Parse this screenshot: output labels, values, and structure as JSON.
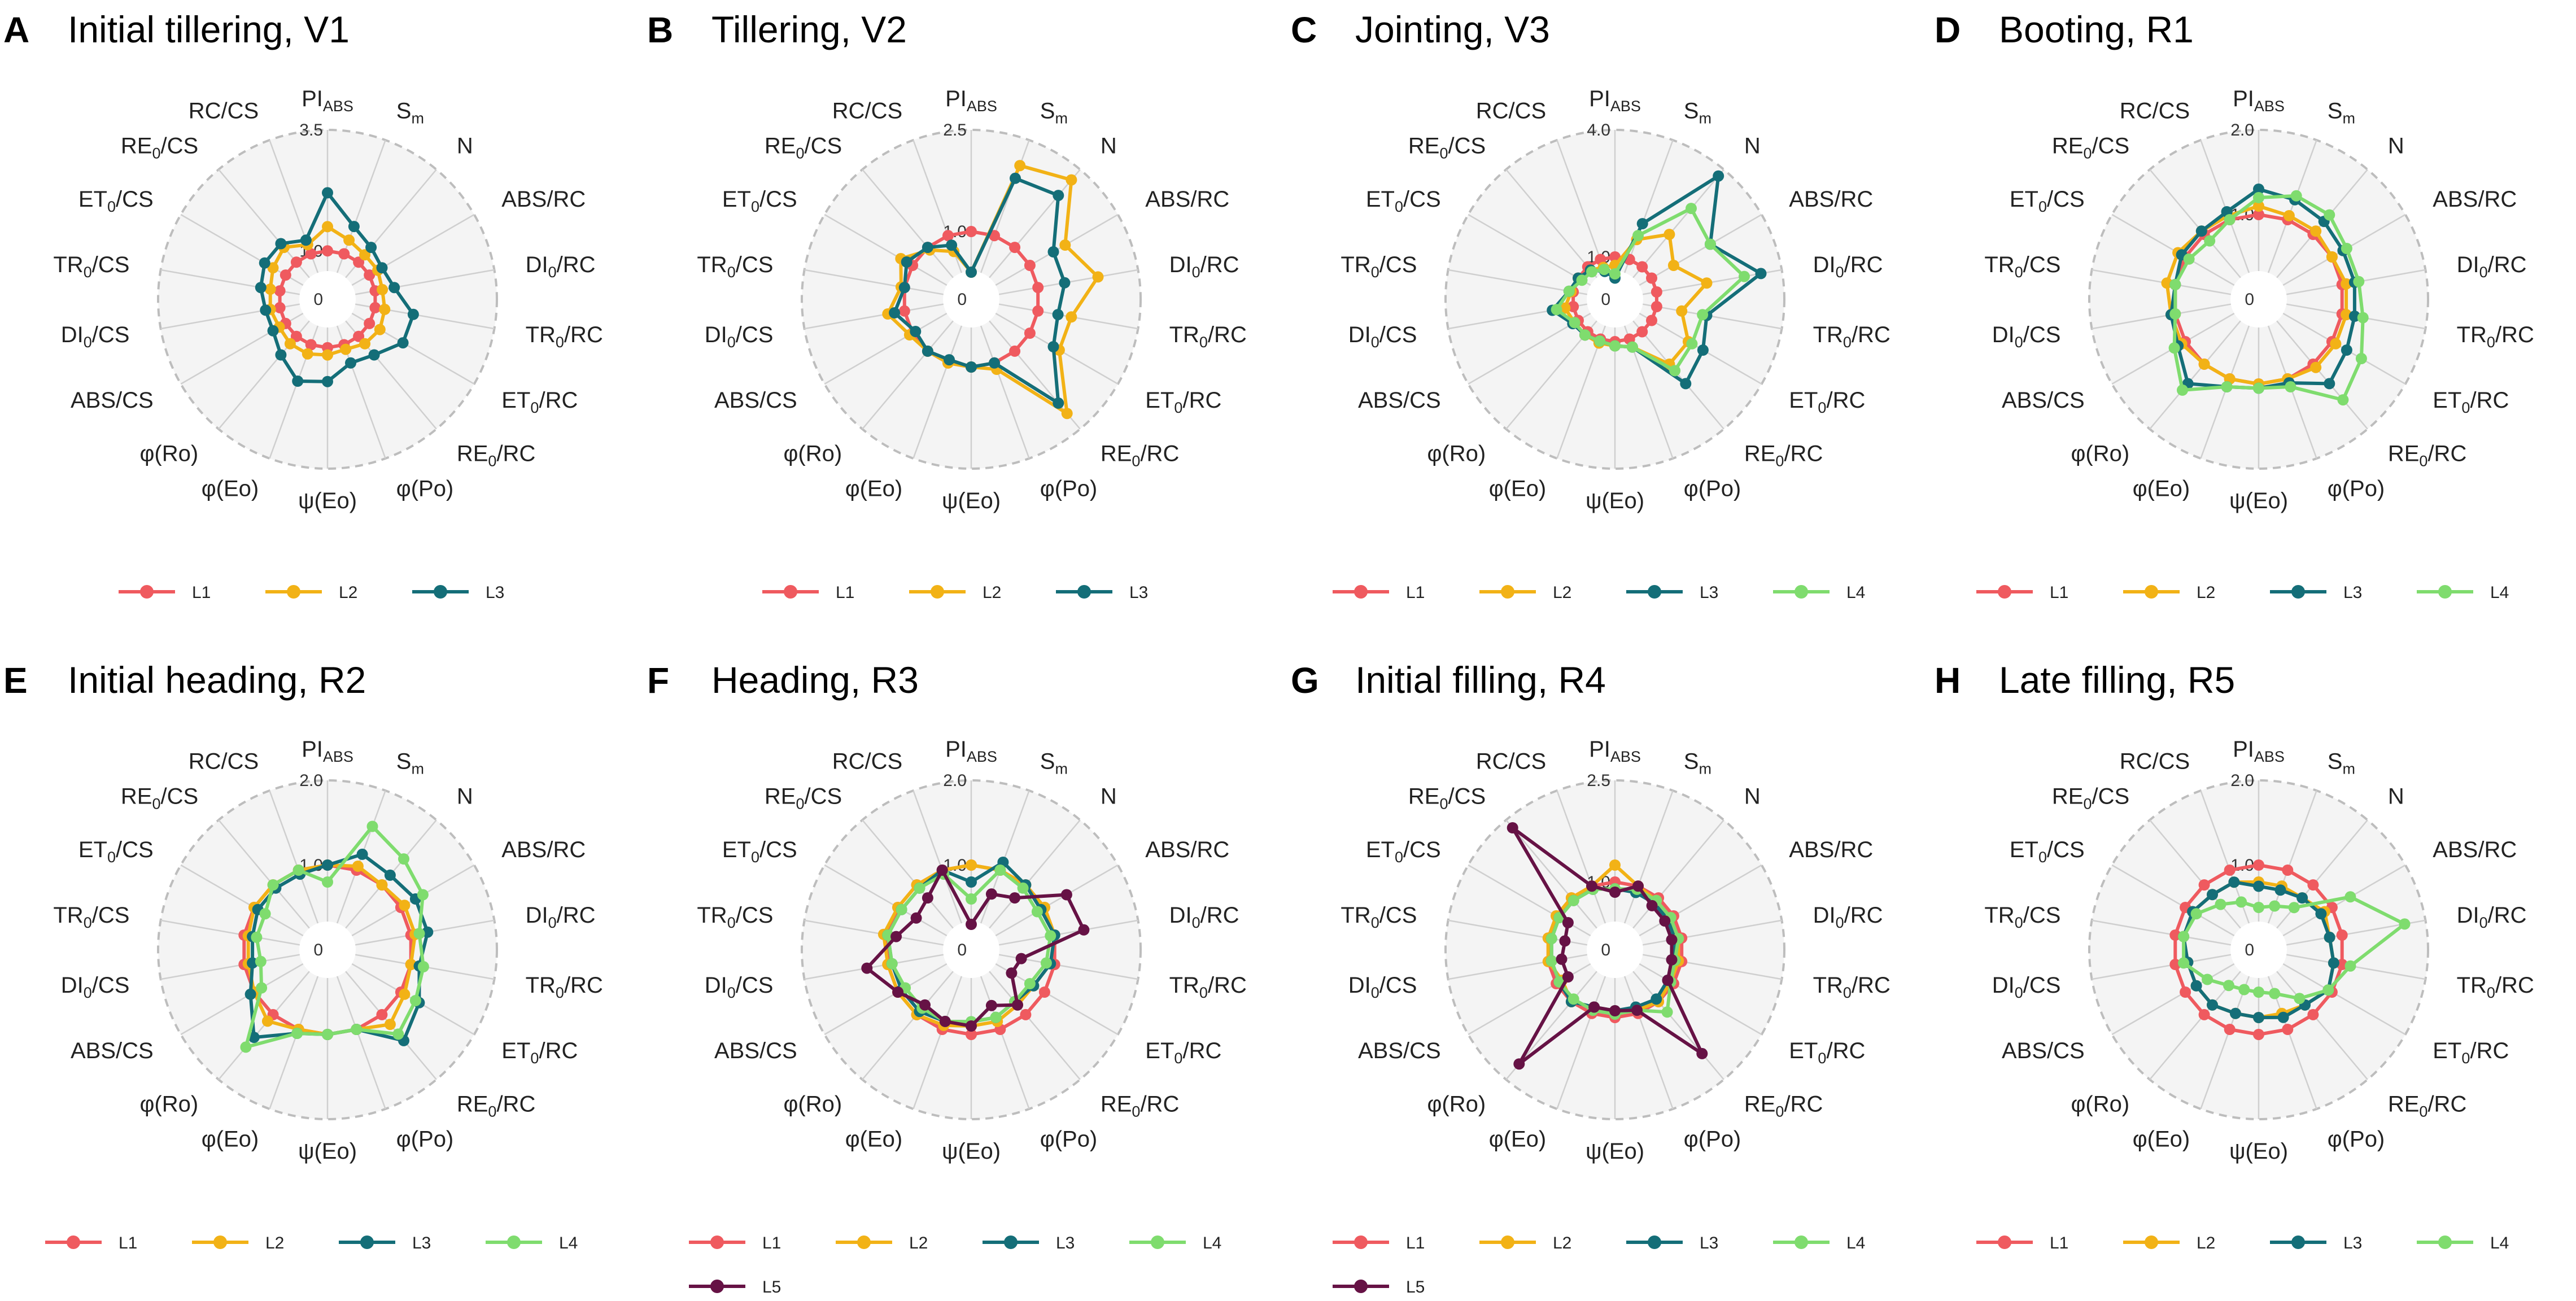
{
  "colors": {
    "L1": "#ef5a5f",
    "L2": "#f2b216",
    "L3": "#146e78",
    "L4": "#7fdc6e",
    "L5": "#661245"
  },
  "chart_data": [
    {
      "panel": "A",
      "title": "Initial tillering, V1",
      "type": "radar",
      "axes": [
        "PIABS",
        "Sm",
        "N",
        "ABS/RC",
        "DI0/RC",
        "TR0/RC",
        "ET0/RC",
        "RE0/RC",
        "φ(Po)",
        "ψ(Eo)",
        "φ(Eo)",
        "φ(Ro)",
        "ABS/CS",
        "DI0/CS",
        "TR0/CS",
        "ET0/CS",
        "RE0/CS",
        "RC/CS"
      ],
      "rmax": 3.5,
      "ticks": [
        0,
        1.0,
        3.5
      ],
      "tick_labels": [
        "0",
        "1.0",
        "3.5"
      ],
      "series": [
        {
          "name": "L1",
          "values": [
            1.0,
            1.0,
            1.0,
            1.0,
            1.0,
            1.0,
            1.0,
            1.0,
            1.0,
            1.0,
            1.0,
            1.0,
            1.0,
            1.0,
            1.0,
            1.0,
            1.0,
            1.0
          ]
        },
        {
          "name": "L2",
          "values": [
            1.5,
            1.3,
            1.2,
            1.2,
            1.15,
            1.2,
            1.25,
            1.2,
            1.1,
            1.15,
            1.2,
            1.2,
            1.15,
            1.2,
            1.2,
            1.3,
            1.4,
            1.2
          ]
        },
        {
          "name": "L3",
          "values": [
            2.2,
            1.6,
            1.4,
            1.3,
            1.4,
            1.8,
            1.8,
            1.5,
            1.4,
            1.7,
            1.8,
            1.5,
            1.3,
            1.3,
            1.4,
            1.5,
            1.5,
            1.3
          ]
        }
      ],
      "legend": [
        "L1",
        "L2",
        "L3"
      ]
    },
    {
      "panel": "B",
      "title": "Tillering, V2",
      "type": "radar",
      "axes": [
        "PIABS",
        "Sm",
        "N",
        "ABS/RC",
        "DI0/RC",
        "TR0/RC",
        "ET0/RC",
        "RE0/RC",
        "φ(Po)",
        "ψ(Eo)",
        "φ(Eo)",
        "φ(Ro)",
        "ABS/CS",
        "DI0/CS",
        "TR0/CS",
        "ET0/CS",
        "RE0/CS",
        "RC/CS"
      ],
      "rmax": 2.5,
      "ticks": [
        0,
        1.0,
        2.5
      ],
      "tick_labels": [
        "0",
        "1.0",
        "2.5"
      ],
      "series": [
        {
          "name": "L1",
          "values": [
            1.0,
            1.0,
            1.0,
            1.0,
            1.0,
            1.0,
            1.0,
            1.0,
            1.0,
            1.0,
            1.0,
            1.0,
            1.0,
            1.0,
            1.0,
            1.0,
            1.0,
            1.0
          ]
        },
        {
          "name": "L2",
          "values": [
            0.4,
            2.1,
            2.3,
            1.6,
            1.9,
            1.5,
            1.5,
            2.2,
            1.1,
            1.0,
            1.0,
            1.0,
            1.05,
            1.25,
            1.05,
            1.2,
            0.95,
            0.75
          ]
        },
        {
          "name": "L3",
          "values": [
            0.4,
            1.9,
            2.0,
            1.4,
            1.4,
            1.3,
            1.4,
            2.0,
            1.0,
            1.0,
            0.95,
            1.0,
            0.95,
            1.15,
            1.0,
            1.1,
            1.0,
            0.85
          ]
        }
      ],
      "legend": [
        "L1",
        "L2",
        "L3"
      ]
    },
    {
      "panel": "C",
      "title": "Jointing, V3",
      "type": "radar",
      "axes": [
        "PIABS",
        "Sm",
        "N",
        "ABS/RC",
        "DI0/RC",
        "TR0/RC",
        "ET0/RC",
        "RE0/RC",
        "φ(Po)",
        "ψ(Eo)",
        "φ(Eo)",
        "φ(Ro)",
        "ABS/CS",
        "DI0/CS",
        "TR0/CS",
        "ET0/CS",
        "RE0/CS",
        "RC/CS"
      ],
      "rmax": 4.0,
      "ticks": [
        0,
        1.0,
        4.0
      ],
      "tick_labels": [
        "0",
        "1.0",
        "4.0"
      ],
      "series": [
        {
          "name": "L1",
          "values": [
            1.0,
            1.0,
            1.0,
            1.0,
            1.0,
            1.0,
            1.0,
            1.0,
            1.0,
            1.0,
            1.0,
            1.0,
            1.0,
            1.0,
            1.0,
            1.0,
            1.0,
            1.0
          ]
        },
        {
          "name": "L2",
          "values": [
            0.8,
            1.5,
            2.0,
            1.6,
            2.2,
            1.6,
            2.0,
            2.0,
            1.2,
            1.1,
            1.1,
            1.1,
            1.1,
            1.2,
            1.05,
            1.0,
            0.9,
            0.8
          ]
        },
        {
          "name": "L3",
          "values": [
            0.5,
            1.9,
            3.8,
            2.6,
            3.5,
            2.2,
            2.4,
            2.6,
            1.2,
            1.1,
            1.05,
            1.1,
            1.15,
            1.5,
            1.1,
            1.0,
            0.9,
            0.7
          ]
        },
        {
          "name": "L4",
          "values": [
            0.6,
            1.6,
            2.8,
            2.6,
            3.1,
            2.1,
            2.1,
            2.2,
            1.2,
            1.1,
            1.05,
            1.1,
            1.1,
            1.4,
            1.1,
            0.9,
            0.85,
            0.75
          ]
        }
      ],
      "legend": [
        "L1",
        "L2",
        "L3",
        "L4"
      ]
    },
    {
      "panel": "D",
      "title": "Booting, R1",
      "type": "radar",
      "axes": [
        "PIABS",
        "Sm",
        "N",
        "ABS/RC",
        "DI0/RC",
        "TR0/RC",
        "ET0/RC",
        "RE0/RC",
        "φ(Po)",
        "ψ(Eo)",
        "φ(Eo)",
        "φ(Ro)",
        "ABS/CS",
        "DI0/CS",
        "TR0/CS",
        "ET0/CS",
        "RE0/CS",
        "RC/CS"
      ],
      "rmax": 2.0,
      "ticks": [
        0,
        1.0,
        2.0
      ],
      "tick_labels": [
        "0",
        "1.0",
        "2.0"
      ],
      "series": [
        {
          "name": "L1",
          "values": [
            1.0,
            1.0,
            1.0,
            1.0,
            1.0,
            1.0,
            1.0,
            1.0,
            1.0,
            1.0,
            1.0,
            1.0,
            1.0,
            1.0,
            1.0,
            1.0,
            1.0,
            1.0
          ]
        },
        {
          "name": "L2",
          "values": [
            1.1,
            1.05,
            1.05,
            1.0,
            1.05,
            1.05,
            1.05,
            1.05,
            1.0,
            1.0,
            1.0,
            1.0,
            1.05,
            1.05,
            1.1,
            1.1,
            1.05,
            1.05
          ]
        },
        {
          "name": "L3",
          "values": [
            1.3,
            1.25,
            1.2,
            1.15,
            1.15,
            1.15,
            1.2,
            1.3,
            1.05,
            1.05,
            1.1,
            1.3,
            1.1,
            1.05,
            1.0,
            1.05,
            1.05,
            1.1
          ]
        },
        {
          "name": "L4",
          "values": [
            1.2,
            1.3,
            1.3,
            1.2,
            1.2,
            1.25,
            1.4,
            1.55,
            1.1,
            1.05,
            1.1,
            1.4,
            1.15,
            1.0,
            1.0,
            0.95,
            0.9,
            1.0
          ]
        }
      ],
      "legend": [
        "L1",
        "L2",
        "L3",
        "L4"
      ]
    },
    {
      "panel": "E",
      "title": "Initial heading, R2",
      "type": "radar",
      "axes": [
        "PIABS",
        "Sm",
        "N",
        "ABS/RC",
        "DI0/RC",
        "TR0/RC",
        "ET0/RC",
        "RE0/RC",
        "φ(Po)",
        "ψ(Eo)",
        "φ(Eo)",
        "φ(Ro)",
        "ABS/CS",
        "DI0/CS",
        "TR0/CS",
        "ET0/CS",
        "RE0/CS",
        "RC/CS"
      ],
      "rmax": 2.0,
      "ticks": [
        0,
        1.0,
        2.0
      ],
      "tick_labels": [
        "0",
        "1.0",
        "2.0"
      ],
      "series": [
        {
          "name": "L1",
          "values": [
            1.0,
            1.0,
            1.0,
            1.0,
            1.0,
            1.0,
            1.0,
            1.0,
            1.0,
            1.0,
            1.0,
            1.0,
            1.0,
            1.0,
            1.0,
            1.0,
            1.0,
            1.0
          ]
        },
        {
          "name": "L2",
          "values": [
            1.0,
            1.05,
            1.0,
            1.05,
            1.05,
            1.0,
            1.05,
            1.15,
            1.0,
            1.0,
            1.0,
            1.1,
            1.0,
            0.95,
            0.95,
            1.0,
            1.0,
            1.0
          ]
        },
        {
          "name": "L3",
          "values": [
            1.0,
            1.2,
            1.15,
            1.2,
            1.2,
            1.1,
            1.25,
            1.4,
            1.0,
            1.0,
            1.05,
            1.35,
            1.05,
            0.9,
            0.9,
            0.95,
            0.95,
            0.95
          ]
        },
        {
          "name": "L4",
          "values": [
            0.8,
            1.55,
            1.4,
            1.3,
            1.1,
            1.15,
            1.2,
            1.3,
            1.0,
            1.0,
            1.05,
            1.5,
            0.9,
            0.8,
            0.85,
            0.85,
            1.0,
            1.0
          ]
        }
      ],
      "legend": [
        "L1",
        "L2",
        "L3",
        "L4"
      ]
    },
    {
      "panel": "F",
      "title": "Heading, R3",
      "type": "radar",
      "axes": [
        "PIABS",
        "Sm",
        "N",
        "ABS/RC",
        "DI0/RC",
        "TR0/RC",
        "ET0/RC",
        "RE0/RC",
        "φ(Po)",
        "ψ(Eo)",
        "φ(Eo)",
        "φ(Ro)",
        "ABS/CS",
        "DI0/CS",
        "TR0/CS",
        "ET0/CS",
        "RE0/CS",
        "RC/CS"
      ],
      "rmax": 2.0,
      "ticks": [
        0,
        1.0,
        2.0
      ],
      "tick_labels": [
        "0",
        "1.0",
        "2.0"
      ],
      "series": [
        {
          "name": "L1",
          "values": [
            1.0,
            1.0,
            1.0,
            1.0,
            1.0,
            1.0,
            1.0,
            1.0,
            1.0,
            1.0,
            1.0,
            1.0,
            1.0,
            1.0,
            1.0,
            1.0,
            1.0,
            1.0
          ]
        },
        {
          "name": "L2",
          "values": [
            1.0,
            1.0,
            1.0,
            1.0,
            1.0,
            0.95,
            0.85,
            0.85,
            0.9,
            0.9,
            0.95,
            1.0,
            1.0,
            1.0,
            1.05,
            1.0,
            1.0,
            1.0
          ]
        },
        {
          "name": "L3",
          "values": [
            0.8,
            1.1,
            1.0,
            0.95,
            1.0,
            0.95,
            0.85,
            0.8,
            0.85,
            0.85,
            0.9,
            0.95,
            0.95,
            0.95,
            1.0,
            0.95,
            0.95,
            1.0
          ]
        },
        {
          "name": "L4",
          "values": [
            0.6,
            1.0,
            0.95,
            0.9,
            0.95,
            0.9,
            0.8,
            0.8,
            0.85,
            0.85,
            0.9,
            0.9,
            0.9,
            0.95,
            1.0,
            0.95,
            0.95,
            0.95
          ]
        },
        {
          "name": "L5",
          "values": [
            0.3,
            0.7,
            0.8,
            1.3,
            1.35,
            0.6,
            0.55,
            0.85,
            0.7,
            0.9,
            0.9,
            0.85,
            1.0,
            1.25,
            0.9,
            0.75,
            0.8,
            1.0
          ]
        }
      ],
      "legend": [
        "L1",
        "L2",
        "L3",
        "L4",
        "L5"
      ]
    },
    {
      "panel": "G",
      "title": "Initial filling, R4",
      "type": "radar",
      "axes": [
        "PIABS",
        "Sm",
        "N",
        "ABS/RC",
        "DI0/RC",
        "TR0/RC",
        "ET0/RC",
        "RE0/RC",
        "φ(Po)",
        "ψ(Eo)",
        "φ(Eo)",
        "φ(Ro)",
        "ABS/CS",
        "DI0/CS",
        "TR0/CS",
        "ET0/CS",
        "RE0/CS",
        "RC/CS"
      ],
      "rmax": 2.5,
      "ticks": [
        0,
        1.0,
        2.5
      ],
      "tick_labels": [
        "0",
        "1.0",
        "2.5"
      ],
      "series": [
        {
          "name": "L1",
          "values": [
            1.0,
            1.0,
            1.0,
            1.0,
            1.0,
            1.0,
            1.0,
            1.0,
            1.0,
            1.0,
            1.0,
            1.0,
            1.0,
            1.0,
            1.0,
            1.0,
            1.0,
            1.0
          ]
        },
        {
          "name": "L2",
          "values": [
            1.25,
            1.0,
            0.95,
            0.95,
            0.95,
            0.95,
            0.95,
            1.0,
            0.95,
            0.9,
            0.9,
            1.0,
            0.9,
            1.0,
            1.0,
            1.0,
            1.0,
            1.0
          ]
        },
        {
          "name": "L3",
          "values": [
            0.9,
            0.9,
            0.9,
            0.9,
            0.9,
            0.9,
            0.9,
            0.95,
            0.9,
            0.9,
            0.9,
            1.0,
            0.95,
            0.95,
            0.95,
            0.95,
            0.95,
            0.95
          ]
        },
        {
          "name": "L4",
          "values": [
            0.9,
            0.95,
            0.95,
            0.95,
            0.95,
            0.9,
            0.95,
            1.2,
            0.95,
            0.95,
            0.95,
            0.95,
            0.95,
            0.95,
            0.95,
            0.95,
            0.95,
            0.95
          ]
        },
        {
          "name": "L5",
          "values": [
            0.85,
            1.0,
            0.85,
            0.85,
            0.85,
            0.85,
            0.9,
            2.0,
            0.95,
            0.9,
            0.9,
            2.2,
            0.8,
            0.8,
            0.75,
            0.8,
            2.35,
            1.0
          ]
        }
      ],
      "legend": [
        "L1",
        "L2",
        "L3",
        "L4",
        "L5"
      ]
    },
    {
      "panel": "H",
      "title": "Late filling, R5",
      "type": "radar",
      "axes": [
        "PIABS",
        "Sm",
        "N",
        "ABS/RC",
        "DI0/RC",
        "TR0/RC",
        "ET0/RC",
        "RE0/RC",
        "φ(Po)",
        "ψ(Eo)",
        "φ(Eo)",
        "φ(Ro)",
        "ABS/CS",
        "DI0/CS",
        "TR0/CS",
        "ET0/CS",
        "RE0/CS",
        "RC/CS"
      ],
      "rmax": 2.0,
      "ticks": [
        0,
        1.0,
        2.0
      ],
      "tick_labels": [
        "0",
        "1.0",
        "2.0"
      ],
      "series": [
        {
          "name": "L1",
          "values": [
            1.0,
            1.0,
            1.0,
            1.0,
            1.0,
            1.0,
            1.0,
            1.0,
            1.0,
            1.0,
            1.0,
            1.0,
            1.0,
            1.0,
            1.0,
            1.0,
            1.0,
            1.0
          ]
        },
        {
          "name": "L2",
          "values": [
            0.8,
            0.8,
            0.8,
            0.9,
            0.85,
            0.9,
            0.95,
            0.85,
            0.8,
            0.8,
            0.8,
            0.85,
            0.85,
            0.85,
            0.9,
            0.9,
            0.85,
            0.85
          ]
        },
        {
          "name": "L3",
          "values": [
            0.75,
            0.75,
            0.8,
            0.85,
            0.85,
            0.9,
            0.95,
            0.85,
            0.85,
            0.8,
            0.8,
            0.85,
            0.85,
            0.85,
            0.9,
            0.9,
            0.85,
            0.85
          ]
        },
        {
          "name": "L4",
          "values": [
            0.5,
            0.55,
            0.65,
            1.25,
            1.75,
            1.1,
            0.95,
            0.75,
            0.55,
            0.5,
            0.5,
            0.55,
            0.7,
            0.9,
            0.9,
            0.85,
            0.7,
            0.6
          ]
        }
      ],
      "legend": [
        "L1",
        "L2",
        "L3",
        "L4"
      ]
    }
  ]
}
